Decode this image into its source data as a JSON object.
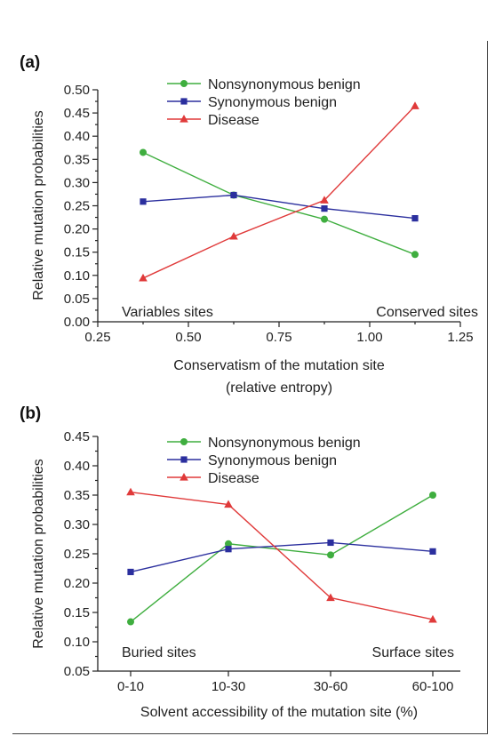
{
  "chart_data": [
    {
      "panel_label": "(a)",
      "type": "line",
      "xlabel": [
        "Conservatism of the mutation site",
        "(relative entropy)"
      ],
      "ylabel": "Relative mutation probabilities",
      "xlim": [
        0.25,
        1.25
      ],
      "ylim": [
        0.0,
        0.5
      ],
      "xticks": [
        "0.25",
        "0.50",
        "0.75",
        "1.00",
        "1.25"
      ],
      "yticks": [
        "0.00",
        "0.05",
        "0.10",
        "0.15",
        "0.20",
        "0.25",
        "0.30",
        "0.35",
        "0.40",
        "0.45",
        "0.50"
      ],
      "x": [
        0.375,
        0.625,
        0.875,
        1.125
      ],
      "series": [
        {
          "name": "Nonsynonymous benign",
          "color": "#3fae3f",
          "marker": "circle",
          "values": [
            0.365,
            0.273,
            0.221,
            0.145
          ]
        },
        {
          "name": "Synonymous benign",
          "color": "#2b2f9e",
          "marker": "square",
          "values": [
            0.259,
            0.273,
            0.244,
            0.223
          ]
        },
        {
          "name": "Disease",
          "color": "#e03a3a",
          "marker": "triangle",
          "values": [
            0.094,
            0.184,
            0.262,
            0.465
          ]
        }
      ],
      "notes": {
        "left": "Variables sites",
        "right": "Conserved sites"
      },
      "legend": "top-center",
      "grid": false
    },
    {
      "panel_label": "(b)",
      "type": "line",
      "xlabel": [
        "Solvent accessibility of the mutation site (%)"
      ],
      "ylabel": "Relative mutation probabilities",
      "categories": [
        "0-10",
        "10-30",
        "30-60",
        "60-100"
      ],
      "ylim": [
        0.05,
        0.45
      ],
      "yticks": [
        "0.05",
        "0.10",
        "0.15",
        "0.20",
        "0.25",
        "0.30",
        "0.35",
        "0.40",
        "0.45"
      ],
      "series": [
        {
          "name": "Nonsynonymous benign",
          "color": "#3fae3f",
          "marker": "circle",
          "values": [
            0.134,
            0.267,
            0.248,
            0.35
          ]
        },
        {
          "name": "Synonymous benign",
          "color": "#2b2f9e",
          "marker": "square",
          "values": [
            0.219,
            0.258,
            0.269,
            0.254
          ]
        },
        {
          "name": "Disease",
          "color": "#e03a3a",
          "marker": "triangle",
          "values": [
            0.355,
            0.334,
            0.175,
            0.138
          ]
        }
      ],
      "notes": {
        "left": "Buried sites",
        "right": "Surface sites"
      },
      "legend": "top-center",
      "grid": false
    }
  ]
}
